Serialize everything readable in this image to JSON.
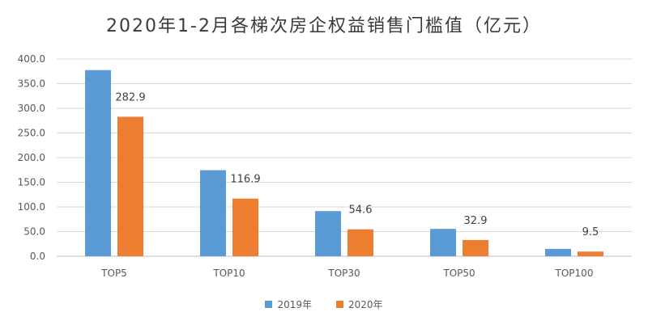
{
  "chart_data": {
    "type": "bar",
    "title": "2020年1-2月各梯次房企权益销售门槛值（亿元）",
    "categories": [
      "TOP5",
      "TOP10",
      "TOP30",
      "TOP50",
      "TOP100"
    ],
    "series": [
      {
        "name": "2019年",
        "color": "#5B9BD5",
        "values": [
          377.5,
          174.5,
          91.5,
          55.5,
          15.0
        ],
        "labels": [
          "",
          "",
          "",
          "",
          ""
        ]
      },
      {
        "name": "2020年",
        "color": "#ED7D31",
        "values": [
          282.9,
          116.9,
          54.6,
          32.9,
          9.5
        ],
        "labels": [
          "282.9",
          "116.9",
          "54.6",
          "32.9",
          "9.5"
        ]
      }
    ],
    "ylim": [
      0,
      400
    ],
    "yticks": [
      "0.0",
      "50.0",
      "100.0",
      "150.0",
      "200.0",
      "250.0",
      "300.0",
      "350.0",
      "400.0"
    ],
    "grid": true,
    "legend": "bottom"
  }
}
